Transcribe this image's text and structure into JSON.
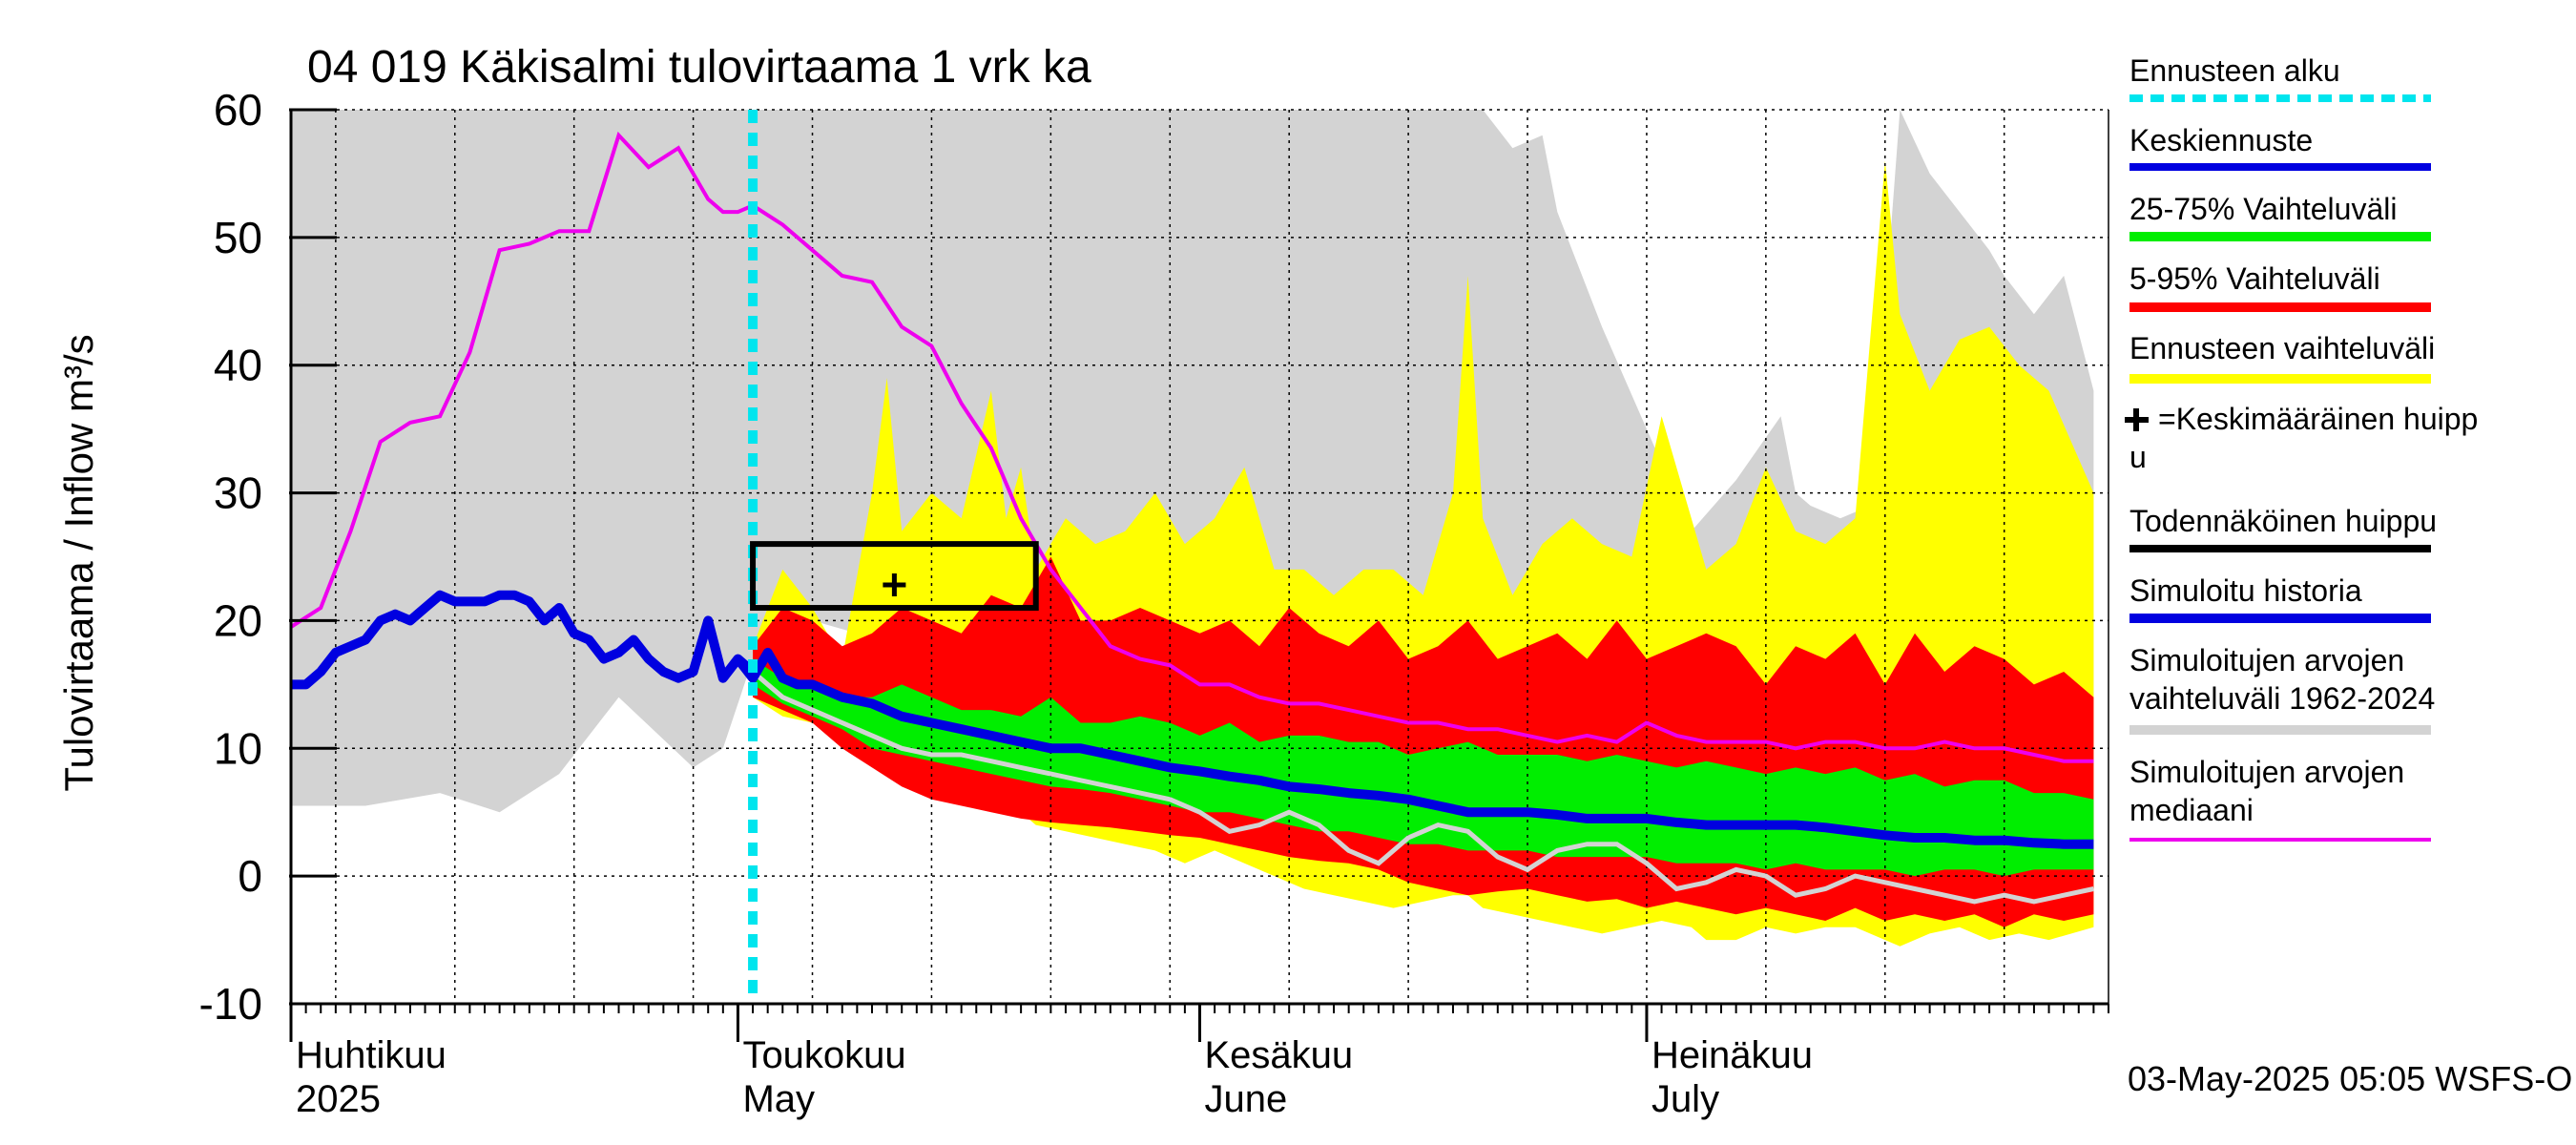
{
  "chart_data": {
    "type": "area",
    "title": "04 019 Käkisalmi tulovirtaama 1 vrk ka",
    "ylabel": "Tulovirtaama / Inflow    m³/s",
    "ylim": [
      -10,
      60
    ],
    "yticks": [
      -10,
      0,
      10,
      20,
      30,
      40,
      50,
      60
    ],
    "grid": true,
    "x_start": "2025-04-01",
    "x_end": "2025-07-31",
    "forecast_start_day": 31,
    "month_labels": [
      {
        "day": 0,
        "fi": "Huhtikuu",
        "en": "2025"
      },
      {
        "day": 30,
        "fi": "Toukokuu",
        "en": "May"
      },
      {
        "day": 61,
        "fi": "Kesäkuu",
        "en": "June"
      },
      {
        "day": 91,
        "fi": "Heinäkuu",
        "en": "July"
      }
    ],
    "footer": "03-May-2025 05:05 WSFS-O",
    "legend": [
      {
        "label": "Ennusteen alku",
        "color": "#00e5ee",
        "style": "dotted"
      },
      {
        "label": "Keskiennuste",
        "color": "#0000e0",
        "style": "solid"
      },
      {
        "label": "25-75% Vaihteluväli",
        "color": "#00ee00",
        "style": "solid"
      },
      {
        "label": "5-95% Vaihteluväli",
        "color": "#ff0000",
        "style": "solid"
      },
      {
        "label": "Ennusteen vaihteluväli",
        "color": "#ffff00",
        "style": "solid"
      },
      {
        "label": "✚=Keskimääräinen huipp u",
        "color": "#000000",
        "style": "none"
      },
      {
        "label": "Todennäköinen huippu",
        "color": "#000000",
        "style": "solid"
      },
      {
        "label": "Simuloitu historia",
        "color": "#0000e0",
        "style": "solid"
      },
      {
        "label": "Simuloitujen arvojen vaihteluväli 1962-2024",
        "color": "#d3d3d3",
        "style": "solid"
      },
      {
        "label": "Simuloitujen arvojen mediaani",
        "color": "#ee00ee",
        "style": "solid"
      }
    ],
    "peak_box": {
      "day_start": 31,
      "day_end": 50,
      "y_low": 21,
      "y_high": 26
    },
    "mean_peak": {
      "day": 40.5,
      "value": 22.8
    },
    "series": {
      "hist_range": {
        "days": [
          0,
          5,
          10,
          14,
          18,
          22,
          27,
          29,
          31,
          35,
          38,
          40,
          42,
          44,
          46,
          49,
          52,
          55,
          58,
          61,
          64,
          67,
          70,
          73,
          76,
          79,
          80,
          82,
          84,
          85,
          88,
          91,
          94,
          97,
          100,
          101,
          102,
          104,
          106,
          108,
          110,
          112,
          114,
          115,
          117,
          119,
          121
        ],
        "upper": [
          60,
          60,
          60,
          60,
          60,
          60,
          60,
          60,
          60,
          60,
          60,
          60,
          60,
          60,
          60,
          60,
          60,
          60,
          60,
          60,
          60,
          60,
          60,
          60,
          60,
          60,
          60,
          57,
          58,
          52,
          43,
          35,
          27,
          31,
          36,
          30,
          29,
          28,
          29,
          60,
          55,
          52,
          49,
          47,
          44,
          47,
          38
        ],
        "lower": [
          5.5,
          5.5,
          6.5,
          5,
          8,
          14,
          8.5,
          10,
          17,
          20,
          19,
          15,
          13,
          11.5,
          10,
          9.8,
          9.7,
          9.6,
          9.2,
          8.6,
          8.7,
          8.5,
          8.0,
          7.8,
          7.6,
          7.4,
          7.2,
          7.0,
          6.8,
          6.7,
          6.6,
          6.6,
          6.5,
          6.0,
          5.8,
          5.7,
          5.5,
          5.5,
          5.3,
          5.0,
          4.8,
          4.6,
          4.5,
          4.4,
          4.0,
          3.8,
          3.5
        ]
      },
      "ens_range": {
        "days": [
          31,
          33,
          35,
          37,
          39,
          40,
          41,
          43,
          45,
          47,
          48,
          49,
          50,
          52,
          54,
          56,
          58,
          60,
          62,
          64,
          66,
          68,
          70,
          72,
          74,
          76,
          78,
          79,
          80,
          82,
          84,
          86,
          88,
          90,
          92,
          94,
          95,
          97,
          99,
          101,
          103,
          105,
          107,
          108,
          110,
          112,
          114,
          116,
          118,
          121
        ],
        "upper": [
          18,
          24,
          21,
          17,
          30,
          39,
          27,
          30,
          28,
          38,
          28,
          32,
          24,
          28,
          26,
          27,
          30,
          26,
          28,
          32,
          24,
          24,
          22,
          24,
          24,
          22,
          30,
          47,
          28,
          22,
          26,
          28,
          26,
          25,
          36,
          28,
          24,
          26,
          32,
          27,
          26,
          28,
          56,
          44,
          38,
          42,
          43,
          40,
          38,
          30
        ],
        "lower": [
          14,
          12.5,
          12,
          11,
          10,
          9,
          9,
          7,
          6.5,
          6,
          5,
          5,
          4,
          3.5,
          3,
          2.5,
          2,
          1,
          2,
          1,
          0,
          -1,
          -1.5,
          -2,
          -2.5,
          -2,
          -1.5,
          -1.5,
          -2.5,
          -3,
          -3.5,
          -4,
          -4.5,
          -4,
          -3.5,
          -4,
          -5,
          -5,
          -4,
          -4.5,
          -4,
          -4,
          -5,
          -5.5,
          -4.5,
          -4,
          -5,
          -4.5,
          -5,
          -4
        ]
      },
      "p5_95": {
        "days": [
          31,
          33,
          35,
          37,
          39,
          41,
          43,
          45,
          47,
          49,
          51,
          53,
          55,
          57,
          59,
          61,
          63,
          65,
          67,
          69,
          71,
          73,
          75,
          77,
          79,
          81,
          83,
          85,
          87,
          89,
          91,
          93,
          95,
          97,
          99,
          101,
          103,
          105,
          107,
          109,
          111,
          113,
          115,
          117,
          119,
          121
        ],
        "upper": [
          18,
          21,
          20,
          18,
          19,
          21,
          20,
          19,
          22,
          21,
          25,
          20,
          20,
          21,
          20,
          19,
          20,
          18,
          21,
          19,
          18,
          20,
          17,
          18,
          20,
          17,
          18,
          19,
          17,
          20,
          17,
          18,
          19,
          18,
          15,
          18,
          17,
          19,
          15,
          19,
          16,
          18,
          17,
          15,
          16,
          14
        ],
        "lower": [
          14,
          13,
          12,
          10,
          8.5,
          7,
          6,
          5.5,
          5,
          4.5,
          4.2,
          4.0,
          3.8,
          3.5,
          3.2,
          3.0,
          2.5,
          2.0,
          1.5,
          1.2,
          1.0,
          0.5,
          -0.5,
          -1,
          -1.5,
          -1.2,
          -1,
          -1.5,
          -2,
          -1.8,
          -2.5,
          -2,
          -2.5,
          -3,
          -2.5,
          -3,
          -3.5,
          -2.5,
          -3.5,
          -3,
          -3.5,
          -3,
          -4,
          -3,
          -3.5,
          -3
        ]
      },
      "p25_75": {
        "days": [
          31,
          33,
          35,
          37,
          39,
          41,
          43,
          45,
          47,
          49,
          51,
          53,
          55,
          57,
          59,
          61,
          63,
          65,
          67,
          69,
          71,
          73,
          75,
          77,
          79,
          81,
          83,
          85,
          87,
          89,
          91,
          93,
          95,
          97,
          99,
          101,
          103,
          105,
          107,
          109,
          111,
          113,
          115,
          117,
          119,
          121
        ],
        "upper": [
          17,
          15.5,
          15,
          14,
          14,
          15,
          14,
          13,
          13,
          12.5,
          14,
          12,
          12,
          12.5,
          12,
          11,
          12,
          10.5,
          11,
          11,
          10.5,
          10.5,
          9.5,
          10,
          10.5,
          9.5,
          9.5,
          9.5,
          9.0,
          9.5,
          9.0,
          8.5,
          9.0,
          8.5,
          8.0,
          8.5,
          8.0,
          8.5,
          7.5,
          8.0,
          7.0,
          7.5,
          7.5,
          6.5,
          6.5,
          6.0
        ],
        "lower": [
          15,
          13.5,
          12.5,
          11.5,
          10,
          9.5,
          9.0,
          8.5,
          8.0,
          7.5,
          7.0,
          6.8,
          6.5,
          6.0,
          5.5,
          5.0,
          5.0,
          4.5,
          4.0,
          3.5,
          3.5,
          3.0,
          2.5,
          2.5,
          2.0,
          2.0,
          2.0,
          1.5,
          1.5,
          1.5,
          1.5,
          1.0,
          1.0,
          1.0,
          0.5,
          1.0,
          0.5,
          0.5,
          0.5,
          0.0,
          0.5,
          0.5,
          0.0,
          0.5,
          0.5,
          0.5
        ]
      },
      "hist_median": {
        "days": [
          0,
          2,
          4,
          6,
          8,
          10,
          12,
          14,
          16,
          18,
          20,
          22,
          24,
          26,
          28,
          29,
          30,
          31,
          33,
          35,
          37,
          39,
          41,
          43,
          45,
          47,
          49,
          51,
          53,
          55,
          57,
          59,
          61,
          63,
          65,
          67,
          69,
          71,
          73,
          75,
          77,
          79,
          81,
          83,
          85,
          87,
          89,
          91,
          93,
          95,
          97,
          99,
          101,
          103,
          105,
          107,
          109,
          111,
          113,
          115,
          117,
          119,
          121
        ],
        "values": [
          19.5,
          21,
          27,
          34,
          35.5,
          36,
          41,
          49,
          49.5,
          50.5,
          50.5,
          58,
          55.5,
          57,
          53,
          52,
          52,
          52.5,
          51,
          49,
          47,
          46.5,
          43,
          41.5,
          37,
          33.5,
          28,
          24,
          21,
          18,
          17,
          16.5,
          15,
          15,
          14,
          13.5,
          13.5,
          13,
          12.5,
          12,
          12,
          11.5,
          11.5,
          11,
          10.5,
          11,
          10.5,
          12,
          11,
          10.5,
          10.5,
          10.5,
          10,
          10.5,
          10.5,
          10,
          10,
          10.5,
          10,
          10,
          9.5,
          9,
          9
        ]
      },
      "sim_history": {
        "days": [
          0,
          1,
          2,
          3,
          4,
          5,
          6,
          7,
          8,
          9,
          10,
          11,
          12,
          13,
          14,
          15,
          16,
          17,
          18,
          19,
          20,
          21,
          22,
          23,
          24,
          25,
          26,
          27,
          28,
          29,
          30,
          31
        ],
        "values": [
          15,
          15,
          16,
          17.5,
          18,
          18.5,
          20,
          20.5,
          20,
          21,
          22,
          21.5,
          21.5,
          21.5,
          22,
          22,
          21.5,
          20,
          21,
          19,
          18.5,
          17,
          17.5,
          18.5,
          17,
          16,
          15.5,
          16,
          20,
          15.5,
          17,
          16
        ]
      },
      "mean_forecast": {
        "days": [
          30,
          31,
          32,
          33,
          34,
          35,
          37,
          39,
          41,
          43,
          45,
          47,
          49,
          51,
          53,
          55,
          57,
          59,
          61,
          63,
          65,
          67,
          69,
          71,
          73,
          75,
          77,
          79,
          81,
          83,
          85,
          87,
          89,
          91,
          93,
          95,
          97,
          99,
          101,
          103,
          105,
          107,
          109,
          111,
          113,
          115,
          117,
          119,
          121
        ],
        "values": [
          17,
          15.5,
          17.5,
          15.5,
          15,
          15,
          14,
          13.5,
          12.5,
          12,
          11.5,
          11,
          10.5,
          10,
          10,
          9.5,
          9,
          8.5,
          8.2,
          7.8,
          7.5,
          7.0,
          6.8,
          6.5,
          6.3,
          6.0,
          5.5,
          5.0,
          5.0,
          5.0,
          4.8,
          4.5,
          4.5,
          4.5,
          4.2,
          4.0,
          4.0,
          4.0,
          4.0,
          3.8,
          3.5,
          3.2,
          3.0,
          3.0,
          2.8,
          2.8,
          2.6,
          2.5,
          2.5
        ]
      },
      "sim_median_forecast": {
        "days": [
          31,
          33,
          35,
          37,
          39,
          41,
          43,
          45,
          47,
          49,
          51,
          53,
          55,
          57,
          59,
          61,
          63,
          65,
          67,
          69,
          71,
          73,
          75,
          77,
          79,
          81,
          83,
          85,
          87,
          89,
          91,
          93,
          95,
          97,
          99,
          101,
          103,
          105,
          107,
          109,
          111,
          113,
          115,
          117,
          119,
          121
        ],
        "values": [
          16,
          14,
          13,
          12,
          11,
          10,
          9.5,
          9.5,
          9.0,
          8.5,
          8.0,
          7.5,
          7.0,
          6.5,
          6.0,
          5.0,
          3.5,
          4.0,
          5.0,
          4.0,
          2.0,
          1.0,
          3.0,
          4.0,
          3.5,
          1.5,
          0.5,
          2.0,
          2.5,
          2.5,
          1.0,
          -1.0,
          -0.5,
          0.5,
          0.0,
          -1.5,
          -1.0,
          0.0,
          -0.5,
          -1.0,
          -1.5,
          -2.0,
          -1.5,
          -2.0,
          -1.5,
          -1.0
        ]
      }
    }
  }
}
